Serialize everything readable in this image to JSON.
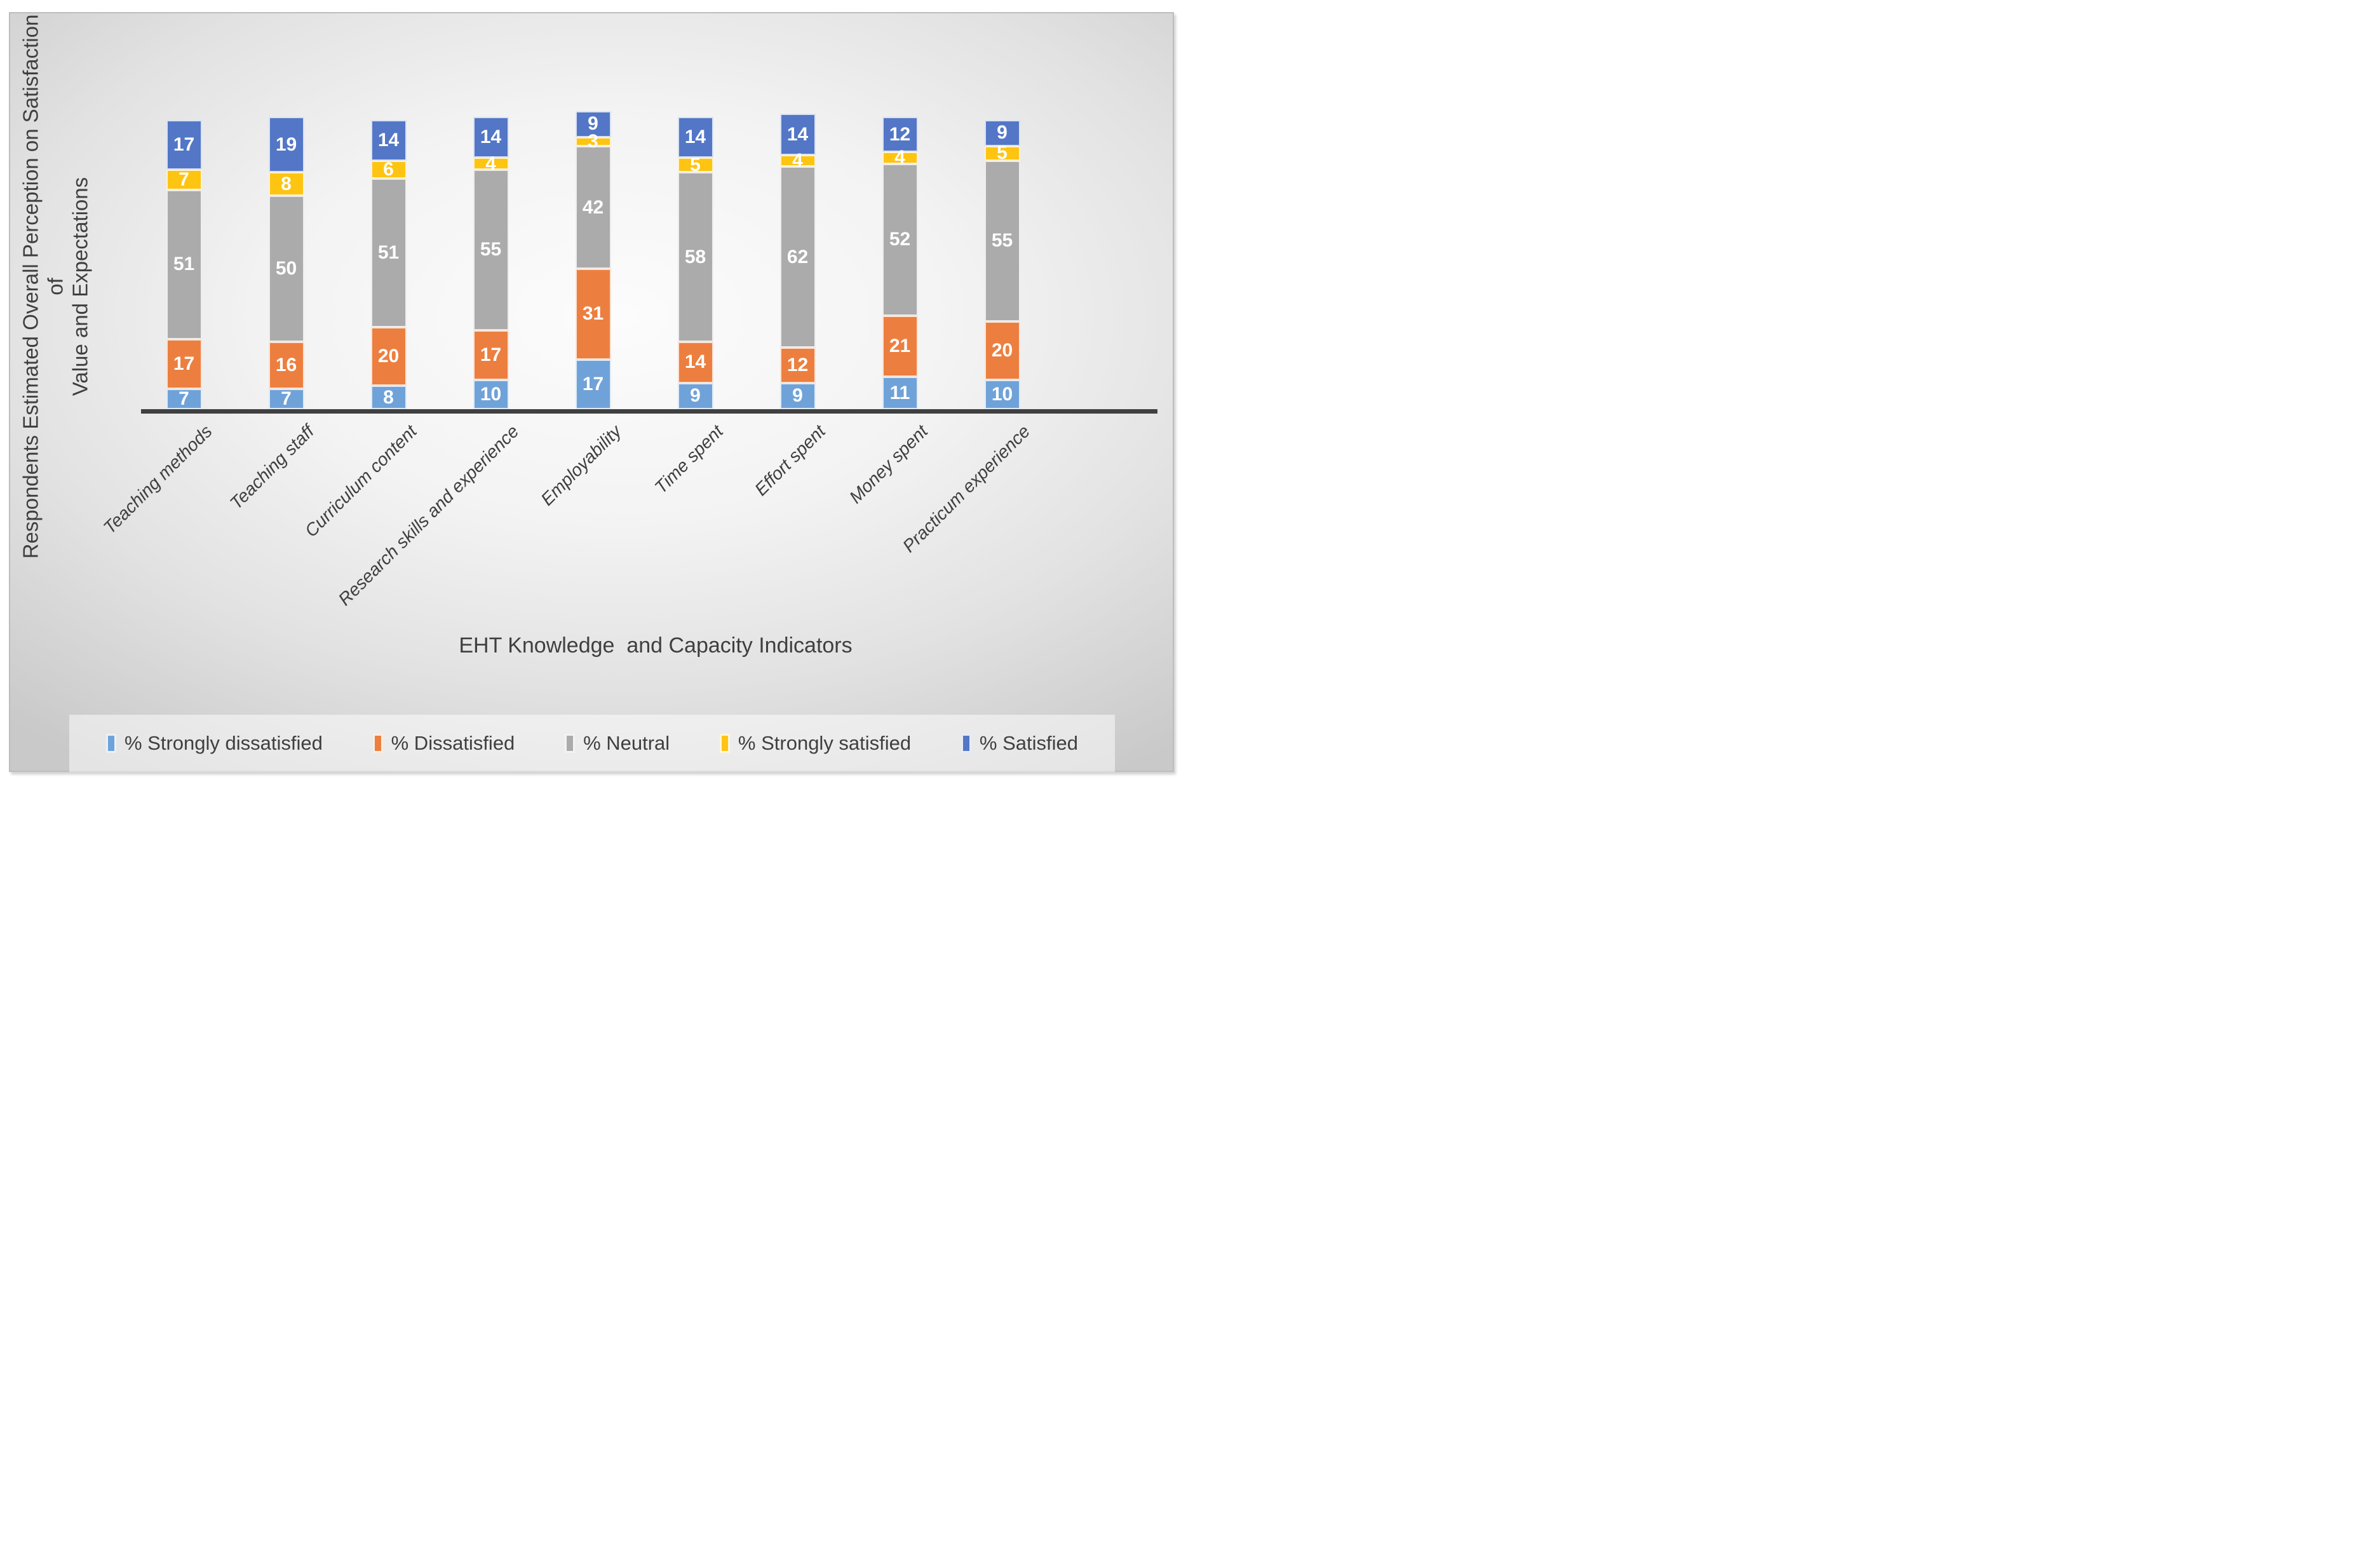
{
  "chart_data": {
    "type": "bar",
    "stacked": true,
    "orientation": "vertical",
    "title": "",
    "xlabel": "EHT Knowledge  and Capacity Indicators",
    "ylabel": "Respondents Estimated Overall Perception on Satisfaction of Value and Expectations",
    "ylabel_lines": {
      "line1": "Respondents Estimated Overall Perception on Satisfaction of",
      "line2": "Value and Expectations"
    },
    "categories": [
      "Teaching methods",
      "Teaching staff",
      "Curriculum content",
      "Research skills and experience",
      "Employability",
      "Time spent",
      "Effort spent",
      "Money spent",
      "Practicum experience"
    ],
    "series": [
      {
        "name": "% Strongly dissatisfied",
        "color": "#6FA2D8",
        "values": [
          7,
          7,
          8,
          10,
          17,
          9,
          9,
          11,
          10
        ]
      },
      {
        "name": "% Dissatisfied",
        "color": "#EC7F3F",
        "values": [
          17,
          16,
          20,
          17,
          31,
          14,
          12,
          21,
          20
        ]
      },
      {
        "name": "% Neutral",
        "color": "#ABABAB",
        "values": [
          51,
          50,
          51,
          55,
          42,
          58,
          62,
          52,
          55
        ]
      },
      {
        "name": "% Strongly satisfied",
        "color": "#FEC412",
        "values": [
          7,
          8,
          6,
          4,
          3,
          5,
          4,
          4,
          5
        ]
      },
      {
        "name": "% Satisfied",
        "color": "#5377C6",
        "values": [
          17,
          19,
          14,
          14,
          9,
          14,
          14,
          12,
          9
        ]
      }
    ],
    "ylim": [
      0,
      102
    ],
    "grid": false,
    "axis_line_color": "#404040",
    "text_color": "#3f3f3f",
    "data_label_color": "#ffffff",
    "legend_position": "bottom"
  }
}
